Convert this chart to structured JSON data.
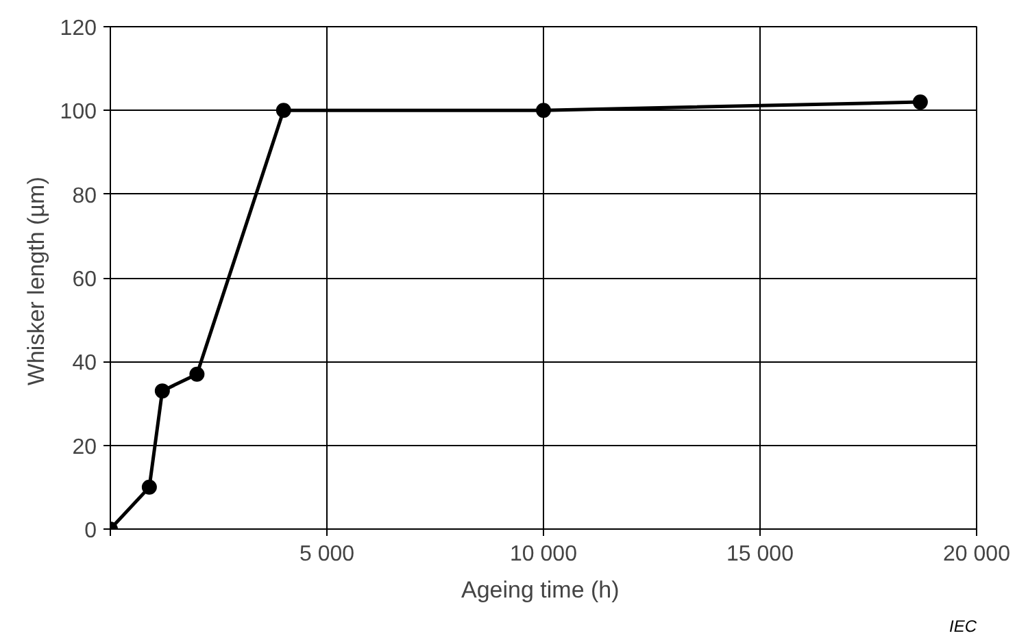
{
  "chart_data": {
    "type": "line",
    "xlabel": "Ageing time  (h)",
    "ylabel": "Whisker length  (µm)",
    "x": [
      0,
      900,
      1200,
      2000,
      4000,
      10000,
      18700
    ],
    "series": [
      {
        "color": "#000000",
        "values": [
          0,
          10,
          33,
          37,
          100,
          100,
          102
        ]
      }
    ],
    "xlim": [
      0,
      20000
    ],
    "ylim": [
      0,
      120
    ],
    "xticks": [
      {
        "value": 0,
        "label": null
      },
      {
        "value": 5000,
        "label": "5 000"
      },
      {
        "value": 10000,
        "label": "10 000"
      },
      {
        "value": 15000,
        "label": "15 000"
      },
      {
        "value": 20000,
        "label": "20 000"
      }
    ],
    "yticks": [
      0,
      20,
      40,
      60,
      80,
      100,
      120
    ],
    "grid": true,
    "marker": "circle",
    "line_style": "solid",
    "annotations": [
      "IEC"
    ]
  }
}
